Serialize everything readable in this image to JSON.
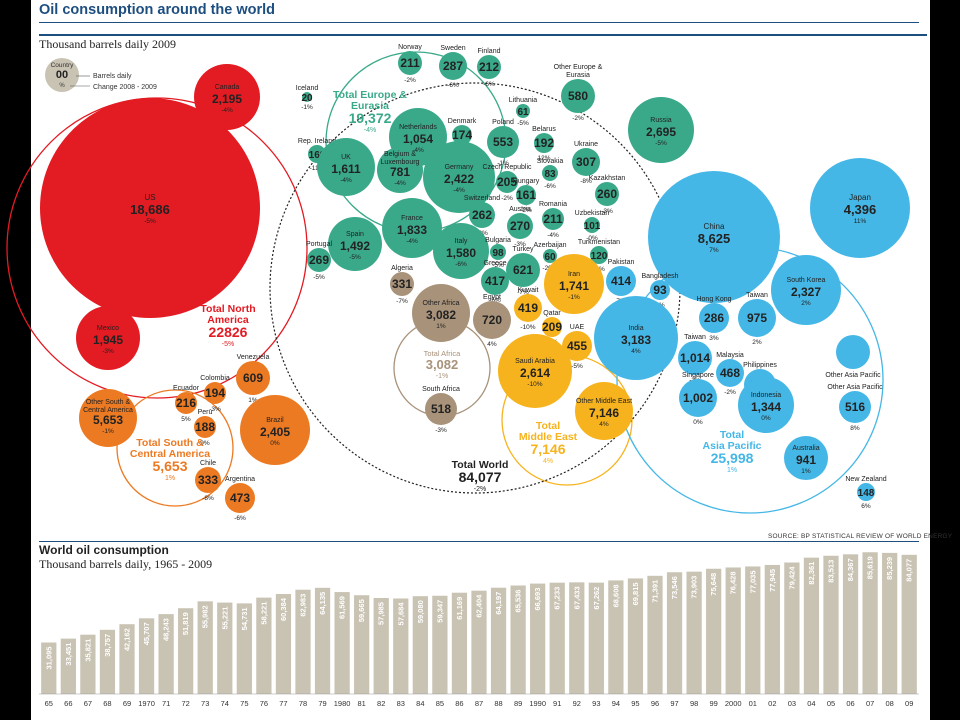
{
  "header": {
    "title": "Oil consumption around the world",
    "subtitle": "Thousand barrels daily 2009"
  },
  "legend": {
    "country_label": "Country",
    "value_label": "00",
    "change_label": "%",
    "barrels_text": "Barrels daily",
    "change_text": "Change 2008 - 2009"
  },
  "source": "SOURCE: BP STATISTICAL REVIEW OF WORLD ENERGY",
  "colors": {
    "north_america": "#e31b23",
    "south_america": "#ec7a22",
    "europe": "#3aa98a",
    "africa": "#a8927a",
    "middle_east": "#f7b31e",
    "asia_pacific": "#45b7e6",
    "world": "#222222",
    "bar": "#c9c3b3",
    "accent": "#1d4e80"
  },
  "chart_data": [
    {
      "type": "bubble",
      "title": "Oil consumption around the world",
      "subtitle": "Thousand barrels daily 2009",
      "regions": [
        {
          "name": "Total North America",
          "value": "22826",
          "change": "-5%",
          "color_key": "north_america"
        },
        {
          "name": "Total South & Central America",
          "value": "5,653",
          "change": "1%",
          "color_key": "south_america"
        },
        {
          "name": "Total Europe & Eurasia",
          "value": "19,372",
          "change": "-4%",
          "color_key": "europe"
        },
        {
          "name": "Total Africa",
          "value": "3,082",
          "change": "-1%",
          "color_key": "africa"
        },
        {
          "name": "Total Middle East",
          "value": "7,146",
          "change": "4%",
          "color_key": "middle_east"
        },
        {
          "name": "Total Asia Pacific",
          "value": "25,998",
          "change": "1%",
          "color_key": "asia_pacific"
        },
        {
          "name": "Total World",
          "value": "84,077",
          "change": "-2%",
          "color_key": "world"
        }
      ],
      "countries": [
        {
          "name": "US",
          "value": "18,686",
          "change": "-5%",
          "region": "north_america"
        },
        {
          "name": "Canada",
          "value": "2,195",
          "change": "-4%",
          "region": "north_america"
        },
        {
          "name": "Mexico",
          "value": "1,945",
          "change": "-3%",
          "region": "north_america"
        },
        {
          "name": "Other South & Central America",
          "value": "5,653",
          "change": "-1%",
          "region": "south_america"
        },
        {
          "name": "Ecuador",
          "value": "216",
          "change": "5%",
          "region": "south_america"
        },
        {
          "name": "Colombia",
          "value": "194",
          "change": "-3%",
          "region": "south_america"
        },
        {
          "name": "Venezuela",
          "value": "609",
          "change": "1%",
          "region": "south_america"
        },
        {
          "name": "Peru",
          "value": "188",
          "change": "9%",
          "region": "south_america"
        },
        {
          "name": "Brazil",
          "value": "2,405",
          "change": "0%",
          "region": "south_america"
        },
        {
          "name": "Chile",
          "value": "333",
          "change": "-8%",
          "region": "south_america"
        },
        {
          "name": "Argentina",
          "value": "473",
          "change": "-6%",
          "region": "south_america"
        },
        {
          "name": "Iceland",
          "value": "20",
          "change": "-1%",
          "region": "europe"
        },
        {
          "name": "Rep. Ireland",
          "value": "169",
          "change": "-11%",
          "region": "europe"
        },
        {
          "name": "Norway",
          "value": "211",
          "change": "-2%",
          "region": "europe"
        },
        {
          "name": "Sweden",
          "value": "287",
          "change": "-6%",
          "region": "europe"
        },
        {
          "name": "Finland",
          "value": "212",
          "change": "-6%",
          "region": "europe"
        },
        {
          "name": "UK",
          "value": "1,611",
          "change": "-4%",
          "region": "europe"
        },
        {
          "name": "Netherlands",
          "value": "1,054",
          "change": "-4%",
          "region": "europe"
        },
        {
          "name": "Denmark",
          "value": "174",
          "change": "-8%",
          "region": "europe"
        },
        {
          "name": "Lithuania",
          "value": "61",
          "change": "-5%",
          "region": "europe"
        },
        {
          "name": "Poland",
          "value": "553",
          "change": "-1%",
          "region": "europe"
        },
        {
          "name": "Belarus",
          "value": "192",
          "change": "12%",
          "region": "europe"
        },
        {
          "name": "Belgium & Luxembourg",
          "value": "781",
          "change": "-4%",
          "region": "europe"
        },
        {
          "name": "Germany",
          "value": "2,422",
          "change": "-4%",
          "region": "europe"
        },
        {
          "name": "Czech Republic",
          "value": "205",
          "change": "-2%",
          "region": "europe"
        },
        {
          "name": "Slovakia",
          "value": "83",
          "change": "-6%",
          "region": "europe"
        },
        {
          "name": "Hungary",
          "value": "161",
          "change": "-2%",
          "region": "europe"
        },
        {
          "name": "Ukraine",
          "value": "307",
          "change": "-8%",
          "region": "europe"
        },
        {
          "name": "Kazakhstan",
          "value": "260",
          "change": "-3%",
          "region": "europe"
        },
        {
          "name": "Romania",
          "value": "211",
          "change": "-4%",
          "region": "europe"
        },
        {
          "name": "Uzbekistan",
          "value": "101",
          "change": "-0%",
          "region": "europe"
        },
        {
          "name": "Switzerland",
          "value": "262",
          "change": "-2%",
          "region": "europe"
        },
        {
          "name": "Austria",
          "value": "270",
          "change": "-3%",
          "region": "europe"
        },
        {
          "name": "France",
          "value": "1,833",
          "change": "-4%",
          "region": "europe"
        },
        {
          "name": "Spain",
          "value": "1,492",
          "change": "-5%",
          "region": "europe"
        },
        {
          "name": "Portugal",
          "value": "269",
          "change": "-5%",
          "region": "europe"
        },
        {
          "name": "Italy",
          "value": "1,580",
          "change": "-6%",
          "region": "europe"
        },
        {
          "name": "Bulgaria",
          "value": "98",
          "change": "-5%",
          "region": "europe"
        },
        {
          "name": "Azerbaijan",
          "value": "60",
          "change": "-20%",
          "region": "europe"
        },
        {
          "name": "Turkmenistan",
          "value": "120",
          "change": "-2%",
          "region": "europe"
        },
        {
          "name": "Turkey",
          "value": "621",
          "change": "-7%",
          "region": "europe"
        },
        {
          "name": "Greece",
          "value": "417",
          "change": "-5%",
          "region": "europe"
        },
        {
          "name": "Other Europe & Eurasia",
          "value": "580",
          "change": "-2%",
          "region": "europe"
        },
        {
          "name": "Russia",
          "value": "2,695",
          "change": "-5%",
          "region": "europe"
        },
        {
          "name": "Algeria",
          "value": "331",
          "change": "-7%",
          "region": "africa"
        },
        {
          "name": "Other Africa",
          "value": "3,082",
          "change": "1%",
          "region": "africa"
        },
        {
          "name": "Egypt",
          "value": "720",
          "change": "4%",
          "region": "africa"
        },
        {
          "name": "South Africa",
          "value": "518",
          "change": "-3%",
          "region": "africa"
        },
        {
          "name": "Iran",
          "value": "1,741",
          "change": "-1%",
          "region": "middle_east"
        },
        {
          "name": "Kuwait",
          "value": "419",
          "change": "-10%",
          "region": "middle_east"
        },
        {
          "name": "Qatar",
          "value": "209",
          "change": "-5%",
          "region": "middle_east"
        },
        {
          "name": "UAE",
          "value": "455",
          "change": "-5%",
          "region": "middle_east"
        },
        {
          "name": "Saudi Arabia",
          "value": "2,614",
          "change": "-10%",
          "region": "middle_east"
        },
        {
          "name": "Other Middle East",
          "value": "7,146",
          "change": "4%",
          "region": "middle_east"
        },
        {
          "name": "China",
          "value": "8,625",
          "change": "7%",
          "region": "asia_pacific"
        },
        {
          "name": "Japan",
          "value": "4,396",
          "change": "11%",
          "region": "asia_pacific"
        },
        {
          "name": "South Korea",
          "value": "2,327",
          "change": "2%",
          "region": "asia_pacific"
        },
        {
          "name": "Pakistan",
          "value": "414",
          "change": "7%",
          "region": "asia_pacific"
        },
        {
          "name": "Bangladesh",
          "value": "93",
          "change": "0%",
          "region": "asia_pacific"
        },
        {
          "name": "India",
          "value": "3,183",
          "change": "4%",
          "region": "asia_pacific"
        },
        {
          "name": "Hong Kong",
          "value": "286",
          "change": "3%",
          "region": "asia_pacific"
        },
        {
          "name": "Taiwan",
          "value": "975",
          "change": "2%",
          "region": "asia_pacific"
        },
        {
          "name": "Taiwan",
          "value": "1,014",
          "change": "-3%",
          "region": "asia_pacific"
        },
        {
          "name": "Philippines",
          "value": "265",
          "change": "0%",
          "region": "asia_pacific"
        },
        {
          "name": "Malaysia",
          "value": "468",
          "change": "-2%",
          "region": "asia_pacific"
        },
        {
          "name": "Singapore",
          "value": "1,002",
          "change": "0%",
          "region": "asia_pacific"
        },
        {
          "name": "Indonesia",
          "value": "1,344",
          "change": "0%",
          "region": "asia_pacific"
        },
        {
          "name": "Other Asia Pacific",
          "value": "",
          "change": "",
          "region": "asia_pacific"
        },
        {
          "name": "Other Asia Pacific",
          "value": "516",
          "change": "8%",
          "region": "asia_pacific"
        },
        {
          "name": "Australia",
          "value": "941",
          "change": "1%",
          "region": "asia_pacific"
        },
        {
          "name": "New Zealand",
          "value": "148",
          "change": "6%",
          "region": "asia_pacific"
        }
      ]
    },
    {
      "type": "bar",
      "title": "World oil consumption",
      "subtitle": "Thousand barrels daily, 1965 - 2009",
      "categories": [
        "65",
        "66",
        "67",
        "68",
        "69",
        "1970",
        "71",
        "72",
        "73",
        "74",
        "75",
        "76",
        "77",
        "78",
        "79",
        "1980",
        "81",
        "82",
        "83",
        "84",
        "85",
        "86",
        "87",
        "88",
        "89",
        "1990",
        "91",
        "92",
        "93",
        "94",
        "95",
        "96",
        "97",
        "98",
        "99",
        "2000",
        "01",
        "02",
        "03",
        "04",
        "05",
        "06",
        "07",
        "08",
        "09"
      ],
      "values": [
        31095,
        33451,
        35821,
        38757,
        42162,
        45707,
        48243,
        51819,
        55982,
        55221,
        54731,
        58221,
        60384,
        62983,
        64135,
        61569,
        59665,
        57985,
        57684,
        59080,
        59347,
        61169,
        62404,
        64197,
        65536,
        66693,
        67233,
        67433,
        67262,
        68608,
        69815,
        71391,
        73546,
        73903,
        75648,
        76428,
        77035,
        77945,
        79424,
        82361,
        83513,
        84367,
        85619,
        85239,
        84077
      ],
      "labels": [
        "31,095",
        "33,451",
        "35,821",
        "38,757",
        "42,162",
        "45,707",
        "48,243",
        "51,819",
        "55,982",
        "55,221",
        "54,731",
        "58,221",
        "60,384",
        "62,983",
        "64,135",
        "61,569",
        "59,665",
        "57,985",
        "57,684",
        "59,080",
        "59,347",
        "61,169",
        "62,404",
        "64,197",
        "65,536",
        "66,693",
        "67,233",
        "67,433",
        "67,262",
        "68,608",
        "69,815",
        "71,391",
        "73,546",
        "73,903",
        "75,648",
        "76,428",
        "77,035",
        "77,945",
        "79,424",
        "82,361",
        "83,513",
        "84,367",
        "85,619",
        "85,239",
        "84,077"
      ],
      "ylim": [
        0,
        90000
      ]
    }
  ]
}
